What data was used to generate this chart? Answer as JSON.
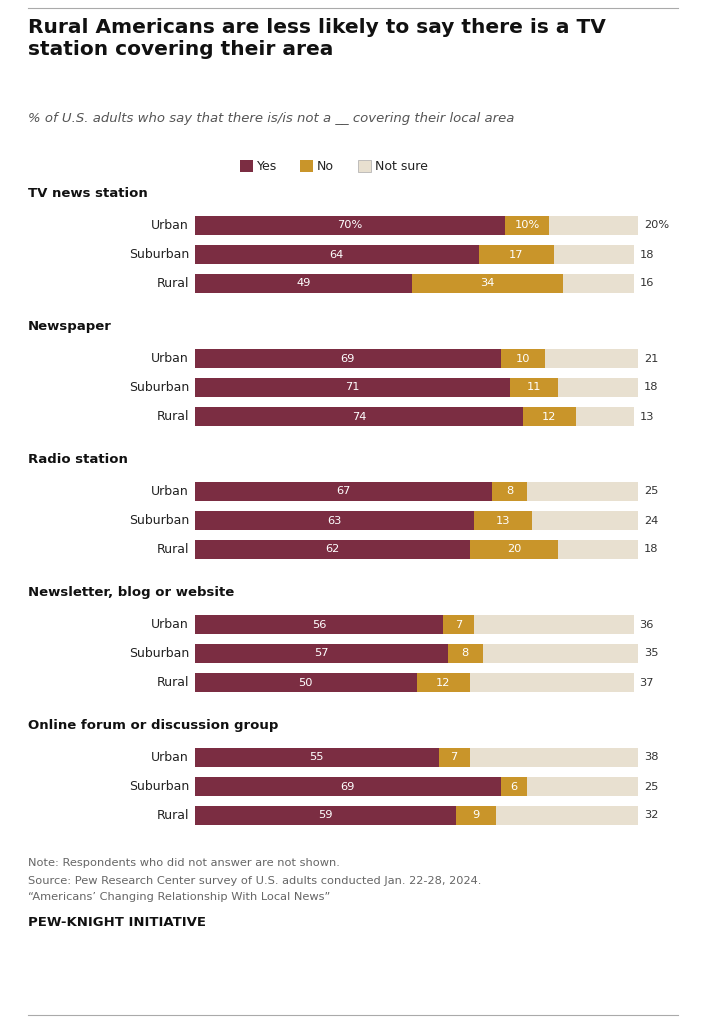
{
  "title": "Rural Americans are less likely to say there is a TV\nstation covering their area",
  "subtitle": "% of U.S. adults who say that there is/is not a __ covering their local area",
  "categories": [
    {
      "name": "TV news station",
      "rows": [
        {
          "label": "Urban",
          "yes": 70,
          "no": 10,
          "not_sure": 20,
          "yes_pct": "70%",
          "no_pct": "10%",
          "ns_pct": "20%"
        },
        {
          "label": "Suburban",
          "yes": 64,
          "no": 17,
          "not_sure": 18,
          "yes_pct": "64",
          "no_pct": "17",
          "ns_pct": "18"
        },
        {
          "label": "Rural",
          "yes": 49,
          "no": 34,
          "not_sure": 16,
          "yes_pct": "49",
          "no_pct": "34",
          "ns_pct": "16"
        }
      ]
    },
    {
      "name": "Newspaper",
      "rows": [
        {
          "label": "Urban",
          "yes": 69,
          "no": 10,
          "not_sure": 21,
          "yes_pct": "69",
          "no_pct": "10",
          "ns_pct": "21"
        },
        {
          "label": "Suburban",
          "yes": 71,
          "no": 11,
          "not_sure": 18,
          "yes_pct": "71",
          "no_pct": "11",
          "ns_pct": "18"
        },
        {
          "label": "Rural",
          "yes": 74,
          "no": 12,
          "not_sure": 13,
          "yes_pct": "74",
          "no_pct": "12",
          "ns_pct": "13"
        }
      ]
    },
    {
      "name": "Radio station",
      "rows": [
        {
          "label": "Urban",
          "yes": 67,
          "no": 8,
          "not_sure": 25,
          "yes_pct": "67",
          "no_pct": "8",
          "ns_pct": "25"
        },
        {
          "label": "Suburban",
          "yes": 63,
          "no": 13,
          "not_sure": 24,
          "yes_pct": "63",
          "no_pct": "13",
          "ns_pct": "24"
        },
        {
          "label": "Rural",
          "yes": 62,
          "no": 20,
          "not_sure": 18,
          "yes_pct": "62",
          "no_pct": "20",
          "ns_pct": "18"
        }
      ]
    },
    {
      "name": "Newsletter, blog or website",
      "rows": [
        {
          "label": "Urban",
          "yes": 56,
          "no": 7,
          "not_sure": 36,
          "yes_pct": "56",
          "no_pct": "7",
          "ns_pct": "36"
        },
        {
          "label": "Suburban",
          "yes": 57,
          "no": 8,
          "not_sure": 35,
          "yes_pct": "57",
          "no_pct": "8",
          "ns_pct": "35"
        },
        {
          "label": "Rural",
          "yes": 50,
          "no": 12,
          "not_sure": 37,
          "yes_pct": "50",
          "no_pct": "12",
          "ns_pct": "37"
        }
      ]
    },
    {
      "name": "Online forum or discussion group",
      "rows": [
        {
          "label": "Urban",
          "yes": 55,
          "no": 7,
          "not_sure": 38,
          "yes_pct": "55",
          "no_pct": "7",
          "ns_pct": "38"
        },
        {
          "label": "Suburban",
          "yes": 69,
          "no": 6,
          "not_sure": 25,
          "yes_pct": "69",
          "no_pct": "6",
          "ns_pct": "25"
        },
        {
          "label": "Rural",
          "yes": 59,
          "no": 9,
          "not_sure": 32,
          "yes_pct": "59",
          "no_pct": "9",
          "ns_pct": "32"
        }
      ]
    }
  ],
  "colors": {
    "yes": "#7B2D42",
    "no": "#C9952A",
    "not_sure": "#E8E0D0",
    "background": "#FFFFFF"
  },
  "note": "Note: Respondents who did not answer are not shown.",
  "source1": "Source: Pew Research Center survey of U.S. adults conducted Jan. 22-28, 2024.",
  "source2": "“Americans’ Changing Relationship With Local News”",
  "brand": "PEW-KNIGHT INITIATIVE",
  "legend": [
    "Yes",
    "No",
    "Not sure"
  ]
}
